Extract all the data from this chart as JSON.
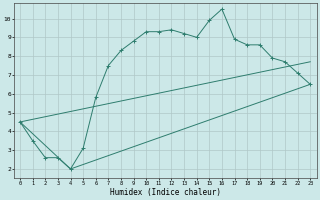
{
  "xlabel": "Humidex (Indice chaleur)",
  "background_color": "#cce8e8",
  "grid_color": "#b0c8c8",
  "line_color": "#2e7d6e",
  "xlim": [
    -0.5,
    23.5
  ],
  "ylim": [
    1.5,
    10.8
  ],
  "yticks": [
    2,
    3,
    4,
    5,
    6,
    7,
    8,
    9,
    10
  ],
  "xticks": [
    0,
    1,
    2,
    3,
    4,
    5,
    6,
    7,
    8,
    9,
    10,
    11,
    12,
    13,
    14,
    15,
    16,
    17,
    18,
    19,
    20,
    21,
    22,
    23
  ],
  "line1_x": [
    0,
    1,
    2,
    3,
    4,
    5,
    6,
    7,
    8,
    9,
    10,
    11,
    12,
    13,
    14,
    15,
    16,
    17,
    18,
    19,
    20,
    21,
    22,
    23
  ],
  "line1_y": [
    4.5,
    3.5,
    2.6,
    2.6,
    2.0,
    3.1,
    5.8,
    7.5,
    8.3,
    8.8,
    9.3,
    9.3,
    9.4,
    9.2,
    9.0,
    9.9,
    10.5,
    8.9,
    8.6,
    8.6,
    7.9,
    7.7,
    7.1,
    6.5
  ],
  "line2_x": [
    0,
    4,
    23
  ],
  "line2_y": [
    4.5,
    2.0,
    6.5
  ],
  "line3_x": [
    0,
    23
  ],
  "line3_y": [
    4.5,
    7.7
  ]
}
